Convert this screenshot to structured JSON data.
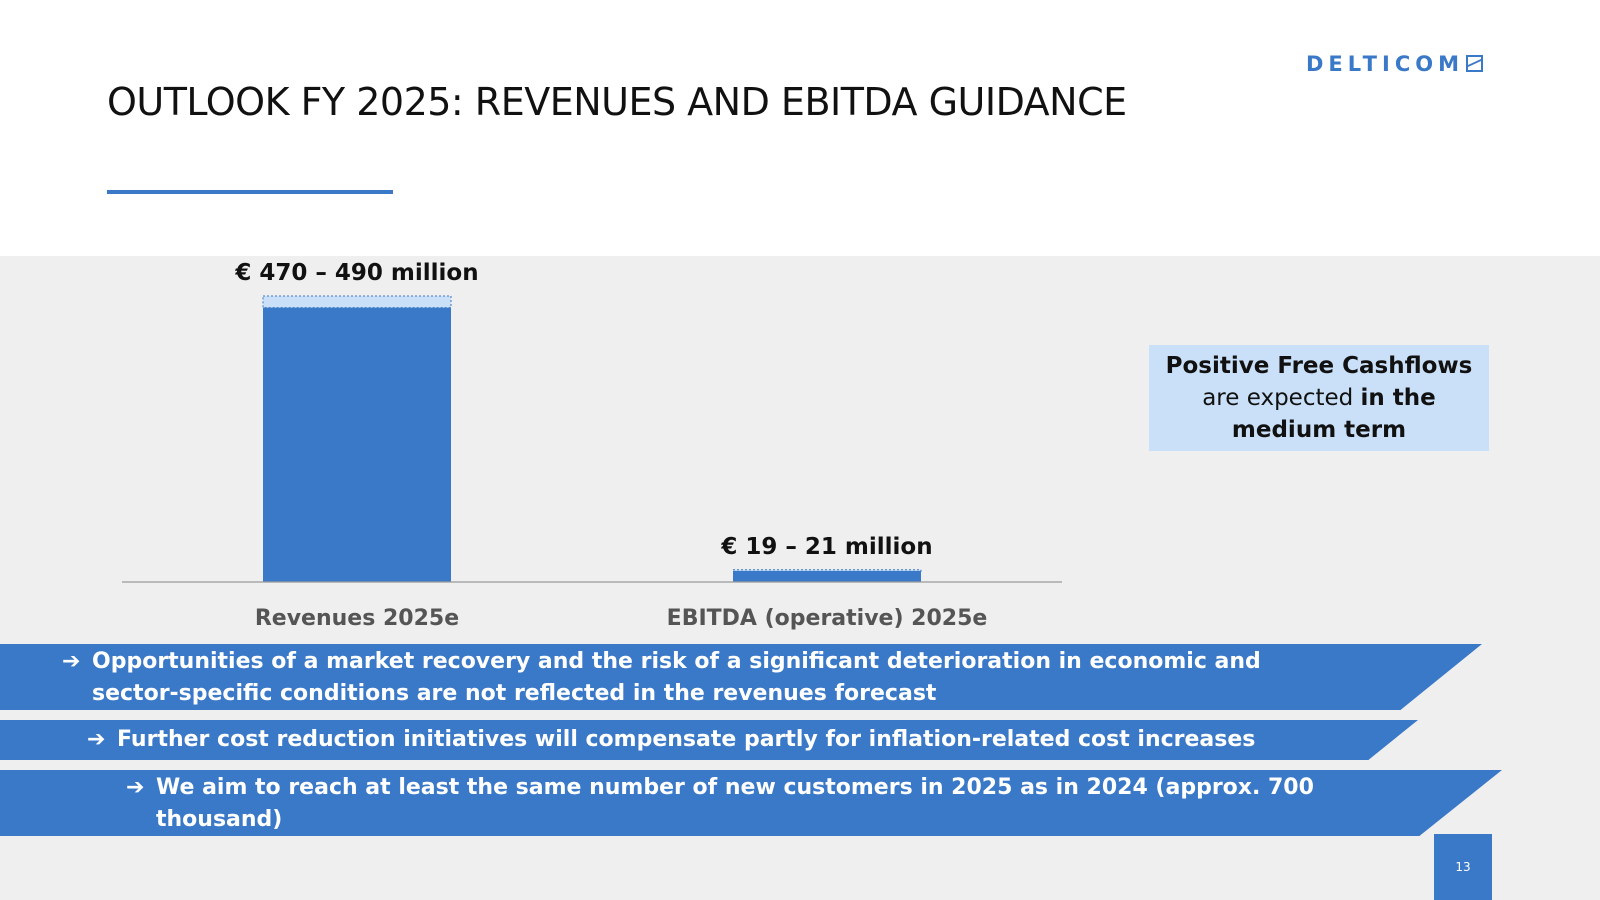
{
  "slide": {
    "title": "OUTLOOK FY 2025: REVENUES AND EBITDA GUIDANCE",
    "logo_text": "DELTICOM",
    "page_number": "13",
    "accent_color": "#3a78c8",
    "callout": {
      "line1": "Positive Free Cashflows",
      "line2_normal": "are expected ",
      "line2_bold": "in the",
      "line3": "medium term",
      "background": "#c9e0f8"
    },
    "banners": [
      {
        "arrow": "➔",
        "text": "Opportunities of a market recovery and the risk of a significant deterioration in economic and sector-specific conditions are not reflected in the revenues forecast"
      },
      {
        "arrow": "➔",
        "text": "Further cost reduction initiatives will compensate partly for inflation-related cost increases"
      },
      {
        "arrow": "➔",
        "text": "We aim to reach at least the same number of new customers in 2025 as in 2024 (approx. 700 thousand)"
      }
    ]
  },
  "chart_data": {
    "type": "bar",
    "categories": [
      "Revenues 2025e",
      "EBITDA (operative) 2025e"
    ],
    "values": [
      470,
      19
    ],
    "ranges": [
      [
        470,
        490
      ],
      [
        19,
        21
      ]
    ],
    "data_labels": [
      "€ 470 – 490 million",
      "€ 19 – 21 million"
    ],
    "bar_color": "#3a78c8",
    "range_color": "#c9e0f8",
    "ylim": [
      0,
      490
    ],
    "grid": false
  }
}
